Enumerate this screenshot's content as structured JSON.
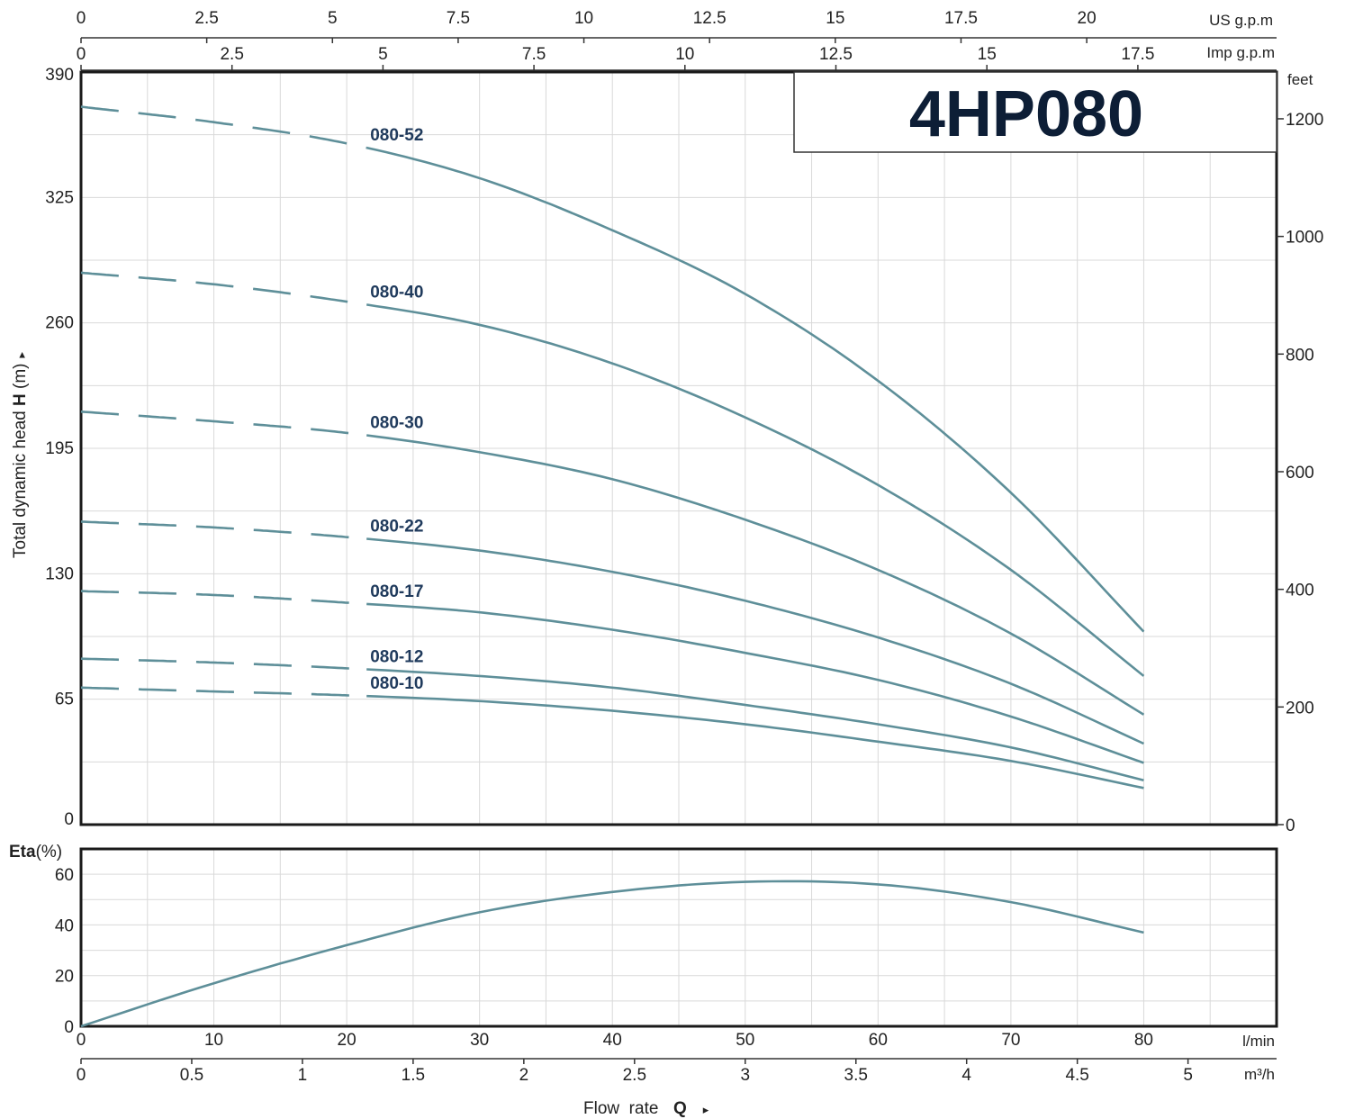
{
  "chart_data": [
    {
      "type": "line",
      "title": "4HP080",
      "ylabel": "Total dynamic head H (m)",
      "ylabel_parts": {
        "before": "Total dynamic head ",
        "bold": "H",
        "after": " (m)",
        "arrow": "▸"
      },
      "ylim": [
        0,
        390
      ],
      "yticks": [
        0,
        65,
        130,
        195,
        260,
        325,
        390
      ],
      "y2_unit": "feet",
      "y2ticks": [
        0,
        200,
        400,
        600,
        800,
        1000,
        1200
      ],
      "xlim": [
        0,
        90
      ],
      "x_unit": "l/min",
      "xticks": [
        0,
        10,
        20,
        30,
        40,
        50,
        60,
        70,
        80
      ],
      "xlabel_parts": {
        "before": "Flow  rate  ",
        "bold": "Q",
        "arrow": "▸"
      },
      "x2_unit": "m³/h",
      "x2ticks": [
        "0",
        "0.5",
        "1",
        "1.5",
        "2",
        "2.5",
        "3",
        "3.5",
        "4",
        "4.5",
        "5"
      ],
      "top1_unit": "US g.p.m",
      "top1ticks": [
        "0",
        "2.5",
        "5",
        "7.5",
        "10",
        "12.5",
        "15",
        "17.5",
        "20"
      ],
      "top2_unit": "Imp g.p.m",
      "top2ticks": [
        "0",
        "2.5",
        "5",
        "7.5",
        "10",
        "12.5",
        "15",
        "17.5"
      ],
      "series": [
        {
          "name": "080-52",
          "dashed_to_x": 21.5,
          "x": [
            0,
            10,
            20,
            30,
            40,
            50,
            60,
            70,
            80
          ],
          "y": [
            372,
            364,
            353,
            335,
            308,
            275,
            230,
            172,
            100
          ]
        },
        {
          "name": "080-40",
          "dashed_to_x": 21.5,
          "x": [
            0,
            10,
            20,
            30,
            40,
            50,
            60,
            70,
            80
          ],
          "y": [
            286,
            280,
            271,
            259,
            239,
            211,
            176,
            132,
            77
          ]
        },
        {
          "name": "080-30",
          "dashed_to_x": 21.5,
          "x": [
            0,
            10,
            20,
            30,
            40,
            50,
            60,
            70,
            80
          ],
          "y": [
            214,
            209,
            203,
            193,
            179,
            158,
            132,
            99,
            57
          ]
        },
        {
          "name": "080-22",
          "dashed_to_x": 21.5,
          "x": [
            0,
            10,
            20,
            30,
            40,
            50,
            60,
            70,
            80
          ],
          "y": [
            157,
            154,
            149,
            142,
            131,
            116,
            97,
            73,
            42
          ]
        },
        {
          "name": "080-17",
          "dashed_to_x": 21.5,
          "x": [
            0,
            10,
            20,
            30,
            40,
            50,
            60,
            70,
            80
          ],
          "y": [
            121,
            119,
            115,
            110,
            101,
            89,
            75,
            56,
            32
          ]
        },
        {
          "name": "080-12",
          "dashed_to_x": 21.5,
          "x": [
            0,
            10,
            20,
            30,
            40,
            50,
            60,
            70,
            80
          ],
          "y": [
            86,
            84,
            81,
            77,
            71,
            62,
            52,
            40,
            23
          ]
        },
        {
          "name": "080-10",
          "dashed_to_x": 21.5,
          "x": [
            0,
            10,
            20,
            30,
            40,
            50,
            60,
            70,
            80
          ],
          "y": [
            71,
            69,
            67,
            64,
            59,
            52,
            43,
            33,
            19
          ]
        }
      ],
      "grid": true
    },
    {
      "type": "line",
      "ylabel_parts": {
        "bold": "Eta",
        "after": "(%)"
      },
      "ylim": [
        0,
        70
      ],
      "yticks": [
        0,
        20,
        40,
        60
      ],
      "xlim": [
        0,
        90
      ],
      "series": [
        {
          "name": "",
          "x": [
            0,
            10,
            20,
            30,
            40,
            50,
            60,
            70,
            80
          ],
          "y": [
            0,
            17,
            32,
            45,
            53,
            57,
            56,
            49,
            37
          ]
        }
      ],
      "grid": true
    }
  ]
}
